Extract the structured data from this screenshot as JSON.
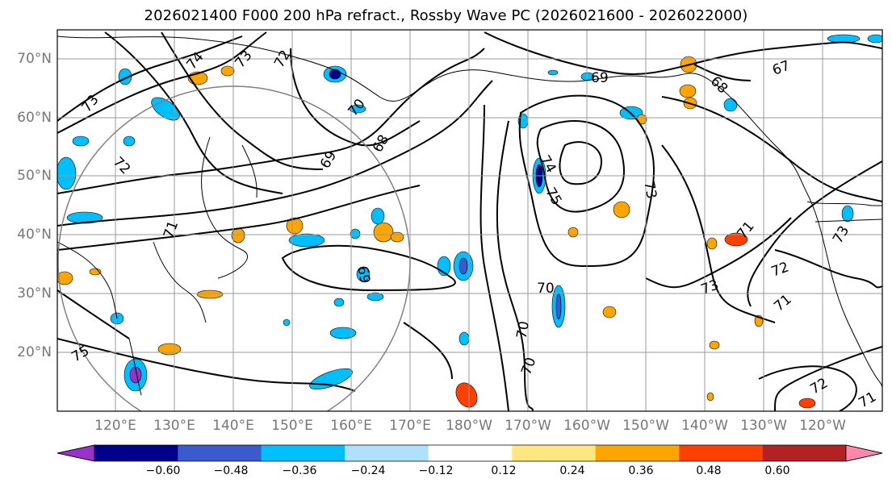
{
  "title": "2026021400 F000 200 hPa refract., Rossby Wave PC (2026021600 - 2026022000)",
  "map": {
    "lat_labels": [
      "70°N",
      "60°N",
      "50°N",
      "40°N",
      "30°N",
      "20°N"
    ],
    "lon_labels": [
      "120°E",
      "130°E",
      "140°E",
      "150°E",
      "160°E",
      "170°E",
      "180°W",
      "170°W",
      "160°W",
      "150°W",
      "140°W",
      "130°W",
      "120°W"
    ],
    "contour_labels": [
      "74",
      "73",
      "72",
      "73",
      "72",
      "71",
      "70",
      "69",
      "68",
      "75",
      "74",
      "73",
      "70",
      "70",
      "70",
      "69",
      "68",
      "67",
      "71",
      "73",
      "73",
      "72",
      "71",
      "72",
      "71",
      "75",
      "69"
    ]
  },
  "colorbar": {
    "colors": [
      "#9932cc",
      "#00008b",
      "#3a5bcf",
      "#00bfff",
      "#b0e0ff",
      "#ffffff",
      "#ffe680",
      "#ffa500",
      "#ff4000",
      "#b22222",
      "#ff88aa"
    ],
    "tick_labels": [
      "−0.60",
      "−0.48",
      "−0.36",
      "−0.24",
      "−0.12",
      "0.12",
      "0.24",
      "0.36",
      "0.48",
      "0.60"
    ]
  },
  "palette": {
    "gridline": "#999999",
    "tick_text": "#777777",
    "circle": "#808080"
  }
}
